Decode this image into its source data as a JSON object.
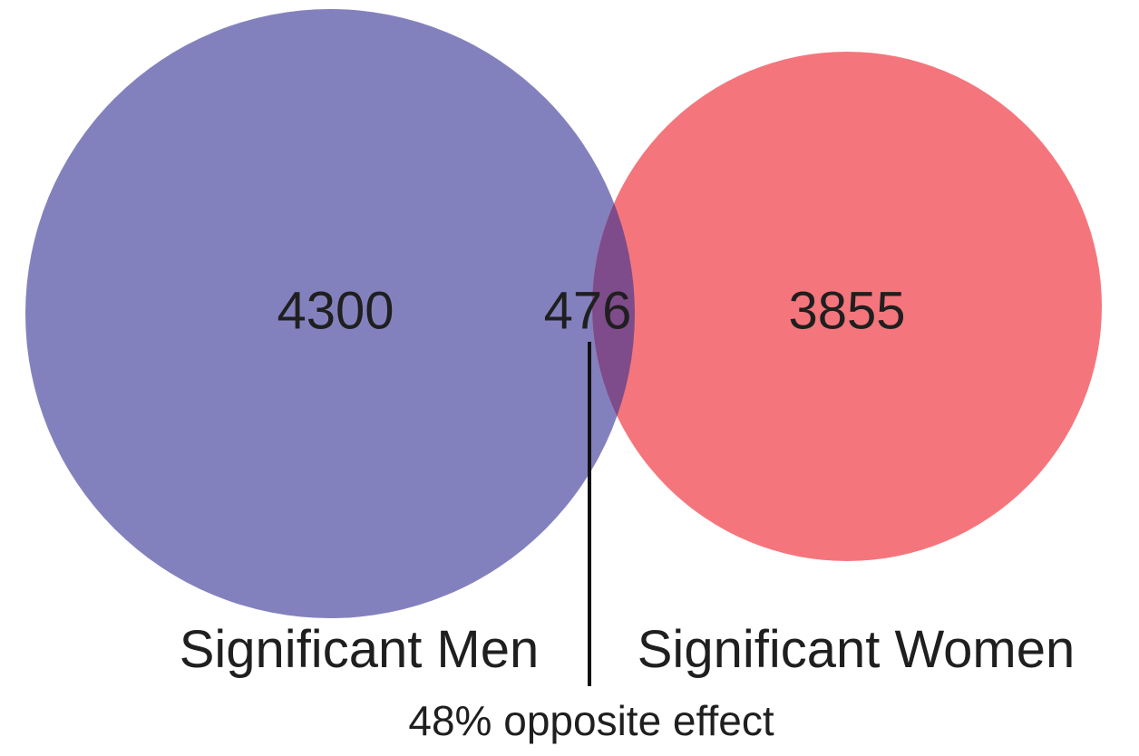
{
  "sets": [
    {
      "id": "men",
      "label": "Significant Men",
      "unique_count": "4300",
      "color": "#8381bd"
    },
    {
      "id": "women",
      "label": "Significant Women",
      "unique_count": "3855",
      "color": "#f4767c"
    }
  ],
  "overlap": {
    "count": "476",
    "color": "#7e4c8a"
  },
  "annotation": {
    "text": "48% opposite effect"
  }
}
